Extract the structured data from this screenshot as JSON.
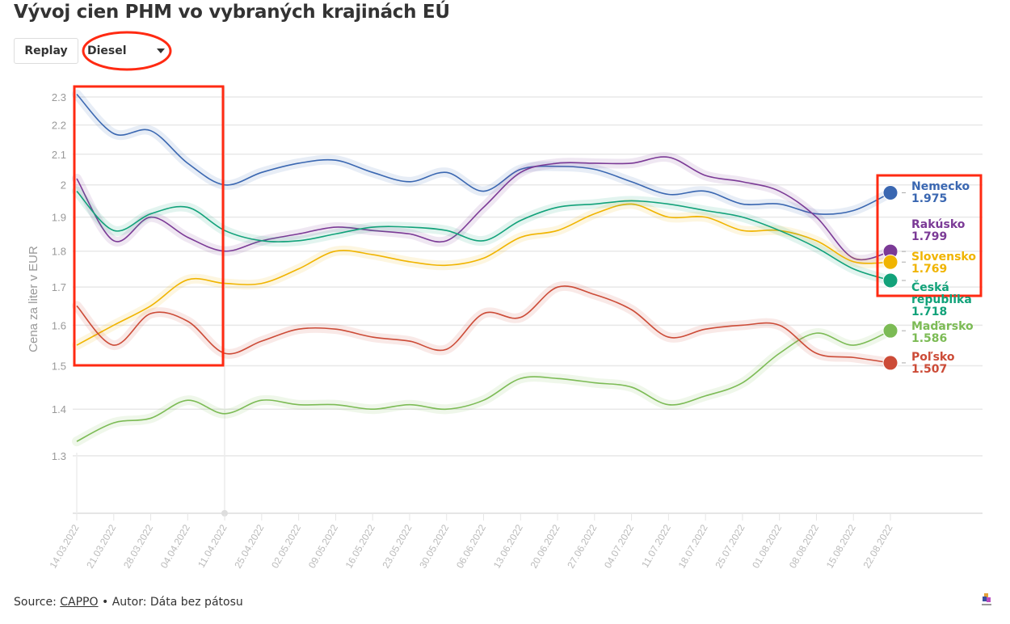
{
  "header": {
    "title": "Vývoj cien PHM vo vybraných krajinách EÚ"
  },
  "controls": {
    "replay_label": "Replay",
    "fuel_select": "Diesel"
  },
  "footer": {
    "source_label": "Source:",
    "source_link": "CAPPO",
    "separator": "•",
    "author": "Autor: Dáta bez pátosu"
  },
  "chart_data": {
    "type": "line",
    "title": "Vývoj cien PHM vo vybraných krajinách EÚ",
    "xlabel": "",
    "ylabel": "Cena za liter v EUR",
    "yscale": "log",
    "ylim": [
      1.2,
      2.3
    ],
    "yticks": [
      1.3,
      1.4,
      1.5,
      1.6,
      1.7,
      1.8,
      1.9,
      2,
      2.1,
      2.2,
      2.3
    ],
    "grid": true,
    "legend": "right end labels",
    "categories": [
      "14.03.2022",
      "21.03.2022",
      "28.03.2022",
      "04.04.2022",
      "11.04.2022",
      "25.04.2022",
      "02.05.2022",
      "09.05.2022",
      "16.05.2022",
      "23.05.2022",
      "30.05.2022",
      "06.06.2022",
      "13.06.2022",
      "20.06.2022",
      "27.06.2022",
      "04.07.2022",
      "11.07.2022",
      "18.07.2022",
      "25.07.2022",
      "01.08.2022",
      "08.08.2022",
      "15.08.2022",
      "22.08.2022"
    ],
    "series": [
      {
        "name": "Nemecko",
        "last_label": "1.975",
        "color": "#3a67b1",
        "values": [
          2.31,
          2.17,
          2.18,
          2.07,
          2.0,
          2.04,
          2.07,
          2.08,
          2.04,
          2.01,
          2.04,
          1.98,
          2.05,
          2.06,
          2.05,
          2.01,
          1.97,
          1.98,
          1.94,
          1.94,
          1.91,
          1.92,
          1.975
        ]
      },
      {
        "name": "Rakúsko",
        "last_label": "1.799",
        "color": "#7b3a96",
        "values": [
          2.02,
          1.83,
          1.9,
          1.84,
          1.8,
          1.83,
          1.85,
          1.87,
          1.86,
          1.85,
          1.83,
          1.93,
          2.04,
          2.07,
          2.07,
          2.07,
          2.09,
          2.03,
          2.01,
          1.98,
          1.9,
          1.78,
          1.799
        ]
      },
      {
        "name": "Slovensko",
        "last_label": "1.769",
        "color": "#f0b400",
        "values": [
          1.55,
          1.6,
          1.65,
          1.72,
          1.71,
          1.71,
          1.75,
          1.8,
          1.79,
          1.77,
          1.76,
          1.78,
          1.84,
          1.86,
          1.91,
          1.94,
          1.9,
          1.9,
          1.86,
          1.86,
          1.83,
          1.77,
          1.769
        ]
      },
      {
        "name": "Česká republika",
        "last_label": "1.718",
        "color": "#12a27a",
        "values": [
          1.98,
          1.86,
          1.91,
          1.93,
          1.86,
          1.83,
          1.83,
          1.85,
          1.87,
          1.87,
          1.86,
          1.83,
          1.89,
          1.93,
          1.94,
          1.95,
          1.94,
          1.92,
          1.9,
          1.86,
          1.81,
          1.75,
          1.718
        ]
      },
      {
        "name": "Maďarsko",
        "last_label": "1.586",
        "color": "#7cbb55",
        "values": [
          1.33,
          1.37,
          1.38,
          1.42,
          1.39,
          1.42,
          1.41,
          1.41,
          1.4,
          1.41,
          1.4,
          1.42,
          1.47,
          1.47,
          1.46,
          1.45,
          1.41,
          1.43,
          1.46,
          1.53,
          1.58,
          1.55,
          1.586
        ]
      },
      {
        "name": "Poľsko",
        "last_label": "1.507",
        "color": "#cc4b37",
        "values": [
          1.65,
          1.55,
          1.63,
          1.61,
          1.53,
          1.56,
          1.59,
          1.59,
          1.57,
          1.56,
          1.54,
          1.63,
          1.62,
          1.7,
          1.68,
          1.64,
          1.57,
          1.59,
          1.6,
          1.6,
          1.53,
          1.52,
          1.507
        ]
      }
    ]
  },
  "annotation_color": "#ff2a12"
}
